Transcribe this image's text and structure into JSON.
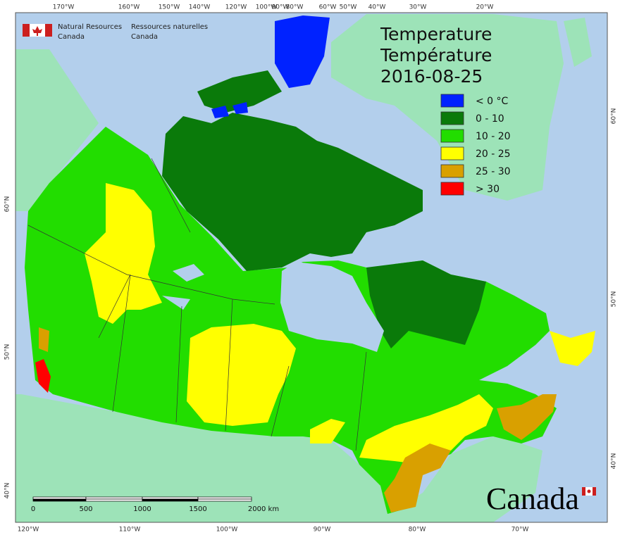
{
  "header": {
    "org_en": [
      "Natural Resources",
      "Canada"
    ],
    "org_fr": [
      "Ressources naturelles",
      "Canada"
    ]
  },
  "title": {
    "lines": [
      "Temperature",
      "Température"
    ],
    "date": "2016-08-25"
  },
  "legend": [
    {
      "label": "< 0 °C",
      "color": "#0022ff"
    },
    {
      "label": "0 - 10",
      "color": "#0a7a0a"
    },
    {
      "label": "10 - 20",
      "color": "#22dd00"
    },
    {
      "label": "20 - 25",
      "color": "#ffff00"
    },
    {
      "label": "25 - 30",
      "color": "#d9a000"
    },
    {
      "label": "> 30",
      "color": "#ff0000"
    }
  ],
  "graticule": {
    "top": [
      "170°W",
      "160°W",
      "150°W",
      "140°W",
      "120°W",
      "100°W",
      "90°W",
      "80°W",
      "60°W",
      "50°W",
      "40°W",
      "30°W",
      "20°W"
    ],
    "bottom": [
      "120°W",
      "110°W",
      "100°W",
      "90°W",
      "80°W",
      "70°W"
    ],
    "left": [
      "60°N",
      "50°N",
      "40°N"
    ],
    "right": [
      "60°N",
      "50°N",
      "40°N"
    ]
  },
  "scale_bar": {
    "labels": [
      "0",
      "500",
      "1000",
      "1500",
      "2000 km"
    ]
  },
  "wordmark": "Canada"
}
